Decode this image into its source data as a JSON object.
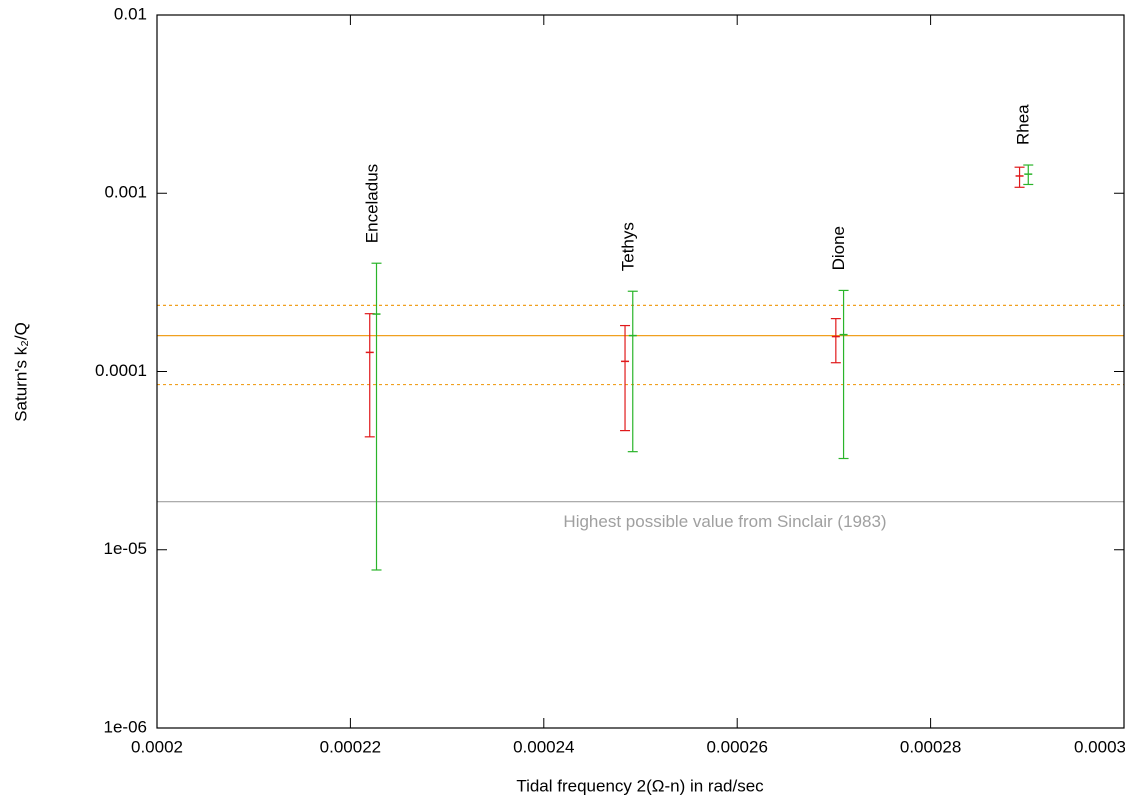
{
  "chart_data": {
    "type": "errorbar",
    "x_label": "Tidal frequency 2(Ω-n) in rad/sec",
    "y_label": "Saturn's k₂/Q",
    "log_y": true,
    "xlim": [
      0.0002,
      0.0003
    ],
    "xticks": [
      0.0002,
      0.00022,
      0.00024,
      0.00026,
      0.00028,
      0.0003
    ],
    "ylim": [
      1e-06,
      0.01
    ],
    "yticks": [
      {
        "value": 1e-06,
        "label": "1e-06"
      },
      {
        "value": 1e-05,
        "label": "1e-05"
      },
      0.0001,
      0.001,
      0.01
    ],
    "labels": [
      "Enceladus",
      "Tethys",
      "Dione",
      "Rhea"
    ],
    "series": [
      {
        "color": "#e0191b",
        "x": [
          0.000222,
          0.0002484,
          0.0002702,
          0.0002892
        ],
        "values": [
          0.000128,
          0.000114,
          0.000157,
          0.00125
        ],
        "y_low": [
          4.3e-05,
          4.66e-05,
          0.000112,
          0.00108
        ],
        "y_high": [
          0.000211,
          0.000181,
          0.000198,
          0.0014
        ]
      },
      {
        "color": "#2ab42a",
        "x": [
          0.0002227,
          0.0002492,
          0.000271,
          0.0002901
        ],
        "values": [
          0.00021,
          0.000159,
          0.000161,
          0.00128
        ],
        "y_low": [
          7.7e-06,
          3.55e-05,
          3.25e-05,
          0.00112
        ],
        "y_high": [
          0.000405,
          0.000282,
          0.000285,
          0.00144
        ]
      }
    ],
    "hlines": [
      {
        "value": 0.000159,
        "color": "#f0a020",
        "style": "solid"
      },
      {
        "value": 0.000235,
        "color": "#f0a020",
        "style": "dotted"
      },
      {
        "value": 8.45e-05,
        "color": "#f0a020",
        "style": "dotted"
      },
      {
        "value": 1.86e-05,
        "color": "#a0a0a0",
        "style": "solid",
        "label": "Highest possible value from Sinclair (1983)"
      }
    ]
  }
}
